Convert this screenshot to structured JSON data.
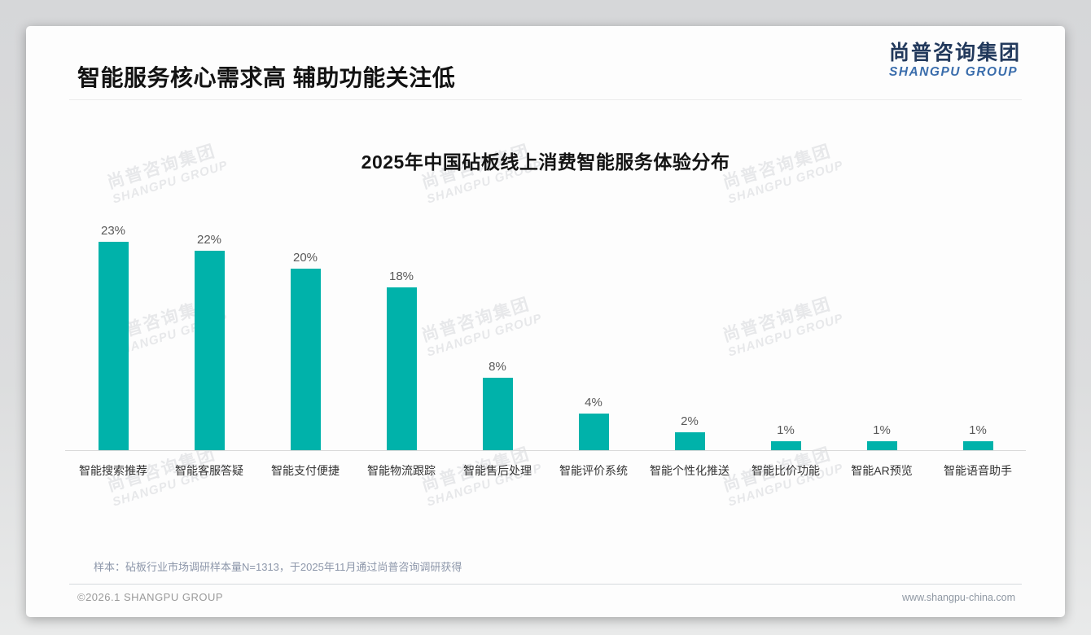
{
  "header": {
    "title": "智能服务核心需求高 辅助功能关注低",
    "logo_cn": "尚普咨询集团",
    "logo_en": "SHANGPU GROUP"
  },
  "watermark": {
    "cn": "尚普咨询集团",
    "en": "SHANGPU GROUP"
  },
  "chart_data": {
    "type": "bar",
    "title": "2025年中国砧板线上消费智能服务体验分布",
    "categories": [
      "智能搜索推荐",
      "智能客服答疑",
      "智能支付便捷",
      "智能物流跟踪",
      "智能售后处理",
      "智能评价系统",
      "智能个性化推送",
      "智能比价功能",
      "智能AR预览",
      "智能语音助手"
    ],
    "values": [
      23,
      22,
      20,
      18,
      8,
      4,
      2,
      1,
      1,
      1
    ],
    "unit": "%",
    "bar_color": "#00b2aa",
    "ylim": [
      0,
      25
    ],
    "grid": false,
    "data_labels": true,
    "legend": "none",
    "xlabel": "",
    "ylabel": ""
  },
  "footnote": "样本：砧板行业市场调研样本量N=1313，于2025年11月通过尚普咨询调研获得",
  "footer": {
    "left": "©2026.1 SHANGPU GROUP",
    "right": "www.shangpu-china.com"
  }
}
